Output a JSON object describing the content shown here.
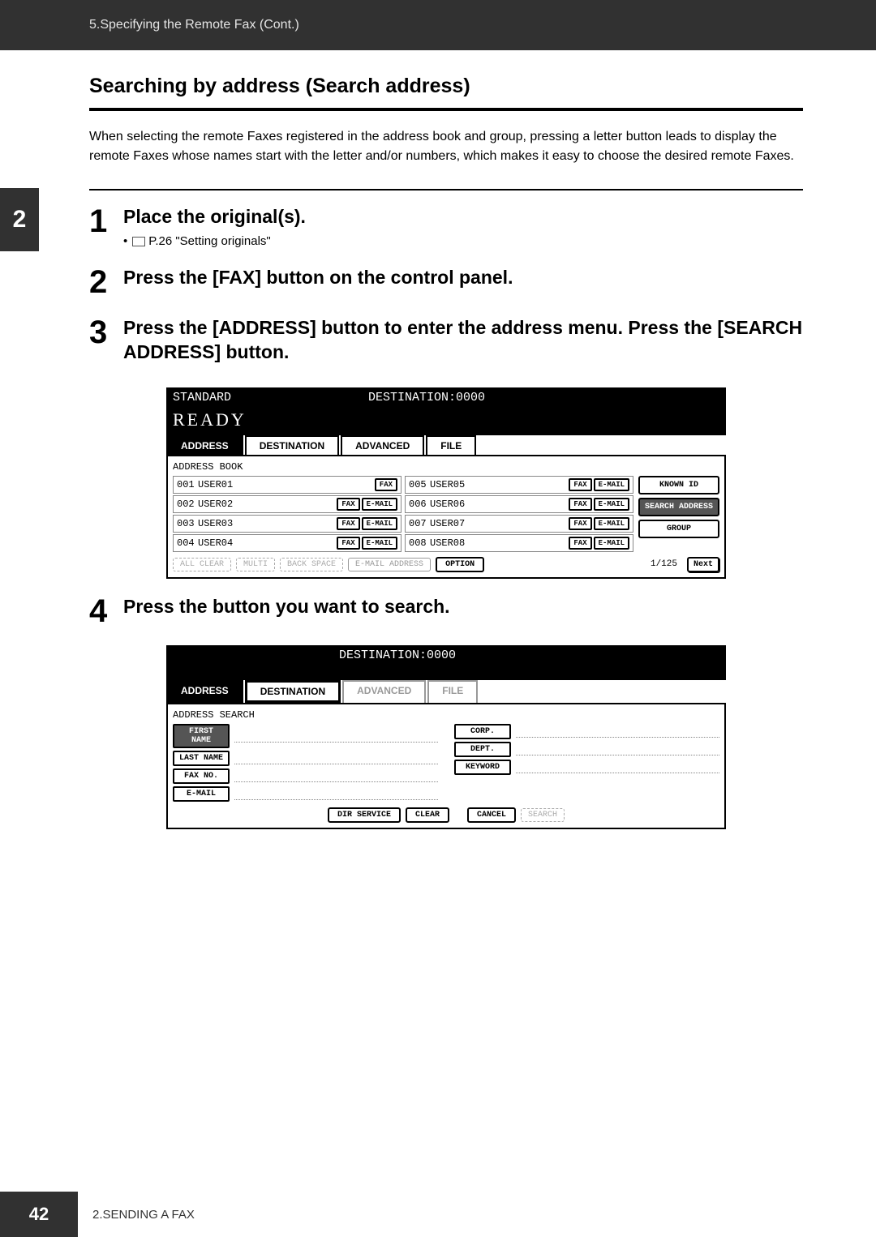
{
  "header": {
    "breadcrumb": "5.Specifying the Remote Fax (Cont.)"
  },
  "sidetab": {
    "num": "2"
  },
  "section": {
    "title": "Searching by address (Search address)",
    "intro": "When selecting the remote Faxes registered in the address book and group, pressing a letter button leads to display the remote Faxes whose names start with the letter and/or numbers, which makes it easy to choose the desired remote Faxes."
  },
  "steps": [
    {
      "num": "1",
      "title": "Place the original(s).",
      "sub_ref": "P.26 \"Setting originals\""
    },
    {
      "num": "2",
      "title": "Press the [FAX] button on the control panel."
    },
    {
      "num": "3",
      "title": "Press the [ADDRESS] button to enter the address menu. Press the [SEARCH ADDRESS] button."
    },
    {
      "num": "4",
      "title": "Press the button you want to search."
    }
  ],
  "panel1": {
    "top_left": "STANDARD",
    "top_right": "DESTINATION:0000",
    "ready": "READY",
    "tabs": [
      "ADDRESS",
      "DESTINATION",
      "ADVANCED",
      "FILE"
    ],
    "body_label": "ADDRESS BOOK",
    "rows_left": [
      {
        "id": "001",
        "name": "USER01",
        "btns": [
          "FAX"
        ]
      },
      {
        "id": "002",
        "name": "USER02",
        "btns": [
          "FAX",
          "E-MAIL"
        ]
      },
      {
        "id": "003",
        "name": "USER03",
        "btns": [
          "FAX",
          "E-MAIL"
        ]
      },
      {
        "id": "004",
        "name": "USER04",
        "btns": [
          "FAX",
          "E-MAIL"
        ]
      }
    ],
    "rows_right": [
      {
        "id": "005",
        "name": "USER05",
        "btns": [
          "FAX",
          "E-MAIL"
        ]
      },
      {
        "id": "006",
        "name": "USER06",
        "btns": [
          "FAX",
          "E-MAIL"
        ]
      },
      {
        "id": "007",
        "name": "USER07",
        "btns": [
          "FAX",
          "E-MAIL"
        ]
      },
      {
        "id": "008",
        "name": "USER08",
        "btns": [
          "FAX",
          "E-MAIL"
        ]
      }
    ],
    "side_buttons": [
      "KNOWN ID",
      "SEARCH ADDRESS",
      "GROUP"
    ],
    "bottom": {
      "all_clear": "ALL CLEAR",
      "multi": "MULTI",
      "back_space": "BACK SPACE",
      "email_addr": "E-MAIL ADDRESS",
      "option": "OPTION",
      "page": "1/125",
      "next": "Next"
    }
  },
  "panel2": {
    "top_right": "DESTINATION:0000",
    "tabs": [
      "ADDRESS",
      "DESTINATION",
      "ADVANCED",
      "FILE"
    ],
    "body_label": "ADDRESS SEARCH",
    "left_labels": [
      "FIRST NAME",
      "LAST NAME",
      "FAX NO.",
      "E-MAIL"
    ],
    "right_labels": [
      "CORP.",
      "DEPT.",
      "KEYWORD"
    ],
    "bottom": {
      "dir": "DIR SERVICE",
      "clear": "CLEAR",
      "cancel": "CANCEL",
      "search": "SEARCH"
    }
  },
  "footer": {
    "page": "42",
    "chapter": "2.SENDING A FAX"
  }
}
